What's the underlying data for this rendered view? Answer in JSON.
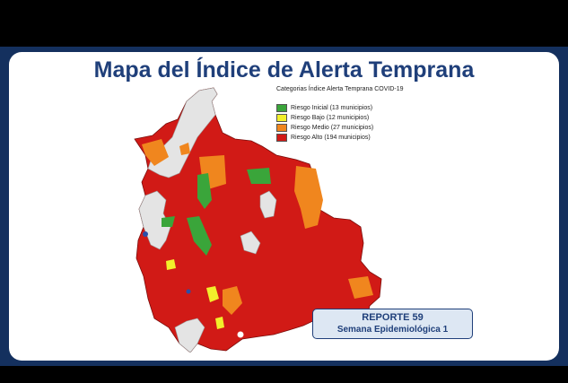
{
  "title": "Mapa del Índice de Alerta Temprana",
  "legend": {
    "title": "Categorias Índice Alerta Temprana COVID-19",
    "items": [
      {
        "label": "Riesgo Inicial (13 municipios)",
        "color": "#3aa53a"
      },
      {
        "label": "Riesgo Bajo (12 municipios)",
        "color": "#f2ef2b"
      },
      {
        "label": "Riesgo Medio (27 municipios)",
        "color": "#f0861e"
      },
      {
        "label": "Riesgo Alto (194 municipios)",
        "color": "#d11a16"
      }
    ]
  },
  "report": {
    "line1": "REPORTE 59",
    "line2": "Semana Epidemiológica 1"
  },
  "colors": {
    "red": "#d11a16",
    "orange": "#f0861e",
    "green": "#3aa53a",
    "yellow": "#f2ef2b",
    "none": "#e4e4e4"
  }
}
